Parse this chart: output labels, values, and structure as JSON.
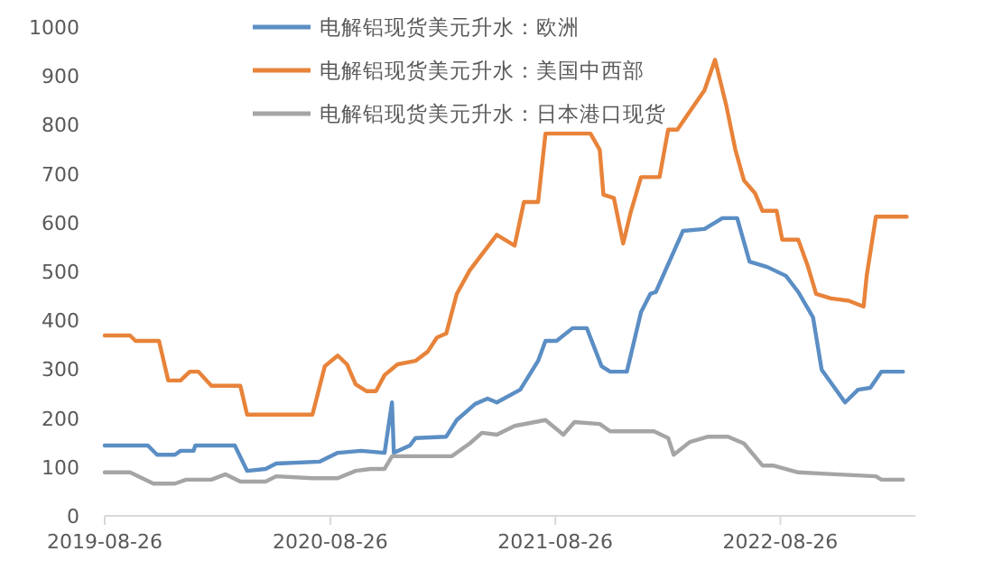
{
  "chart_data": {
    "type": "line",
    "legend": "top",
    "grid": false,
    "marker": "none",
    "line_style": "solid",
    "xlim": [
      "2019-08-26",
      "2023-04-02"
    ],
    "xticks": [
      "2019-08-26",
      "2020-08-26",
      "2021-08-26",
      "2022-08-26"
    ],
    "ylim": [
      0,
      1000
    ],
    "yticks": [
      0,
      100,
      200,
      300,
      400,
      500,
      600,
      700,
      800,
      900,
      1000
    ],
    "series": [
      {
        "name": "电解铝现货美元升水：欧洲",
        "color": "#5b8ec4",
        "x": [
          "2019-08-26",
          "2019-11-04",
          "2019-11-19",
          "2019-12-18",
          "2019-12-27",
          "2020-01-17",
          "2020-01-20",
          "2020-03-24",
          "2020-04-13",
          "2020-05-13",
          "2020-05-30",
          "2020-08-09",
          "2020-09-07",
          "2020-10-15",
          "2020-11-22",
          "2020-12-04",
          "2020-12-07",
          "2021-01-02",
          "2021-01-11",
          "2021-03-02",
          "2021-03-19",
          "2021-04-18",
          "2021-05-08",
          "2021-05-23",
          "2021-06-30",
          "2021-07-29",
          "2021-08-10",
          "2021-08-28",
          "2021-09-23",
          "2021-10-16",
          "2021-11-09",
          "2021-11-23",
          "2021-12-20",
          "2022-01-12",
          "2022-01-27",
          "2022-02-05",
          "2022-03-21",
          "2022-04-25",
          "2022-05-24",
          "2022-06-17",
          "2022-07-07",
          "2022-08-05",
          "2022-09-04",
          "2022-09-24",
          "2022-10-18",
          "2022-11-01",
          "2022-12-09",
          "2022-12-30",
          "2023-01-19",
          "2023-02-06",
          "2023-03-13"
        ],
        "values": [
          144,
          144,
          125,
          125,
          133,
          133,
          144,
          144,
          92,
          96,
          107,
          111,
          129,
          133,
          129,
          232,
          129,
          144,
          159,
          162,
          196,
          229,
          240,
          232,
          258,
          317,
          358,
          358,
          384,
          384,
          306,
          295,
          295,
          417,
          454,
          458,
          583,
          587,
          609,
          609,
          520,
          509,
          491,
          458,
          406,
          299,
          232,
          258,
          262,
          295,
          295
        ]
      },
      {
        "name": "电解铝现货美元升水：美国中西部",
        "color": "#e8833a",
        "x": [
          "2019-08-26",
          "2019-10-06",
          "2019-10-15",
          "2019-11-22",
          "2019-12-07",
          "2019-12-27",
          "2020-01-11",
          "2020-01-25",
          "2020-02-15",
          "2020-02-24",
          "2020-04-02",
          "2020-04-13",
          "2020-07-28",
          "2020-08-17",
          "2020-09-07",
          "2020-09-22",
          "2020-10-06",
          "2020-10-24",
          "2020-11-08",
          "2020-11-22",
          "2020-12-13",
          "2021-01-11",
          "2021-01-31",
          "2021-02-15",
          "2021-03-02",
          "2021-03-19",
          "2021-04-09",
          "2021-05-23",
          "2021-06-21",
          "2021-07-06",
          "2021-07-29",
          "2021-08-10",
          "2021-10-22",
          "2021-11-06",
          "2021-11-12",
          "2021-11-29",
          "2021-12-14",
          "2021-12-26",
          "2022-01-12",
          "2022-02-11",
          "2022-02-25",
          "2022-03-12",
          "2022-04-01",
          "2022-04-25",
          "2022-05-12",
          "2022-05-30",
          "2022-06-14",
          "2022-06-28",
          "2022-07-16",
          "2022-07-28",
          "2022-08-20",
          "2022-08-29",
          "2022-09-24",
          "2022-10-09",
          "2022-10-23",
          "2022-11-16",
          "2022-12-15",
          "2023-01-08",
          "2023-01-13",
          "2023-01-28",
          "2023-03-19"
        ],
        "values": [
          369,
          369,
          358,
          358,
          277,
          277,
          295,
          295,
          266,
          266,
          266,
          207,
          207,
          306,
          328,
          310,
          269,
          255,
          255,
          288,
          310,
          317,
          336,
          365,
          373,
          454,
          502,
          575,
          553,
          642,
          642,
          782,
          782,
          749,
          657,
          650,
          557,
          620,
          693,
          693,
          790,
          790,
          827,
          871,
          933,
          841,
          749,
          686,
          660,
          624,
          624,
          565,
          565,
          513,
          454,
          445,
          440,
          428,
          491,
          612,
          612
        ]
      },
      {
        "name": "电解铝现货美元升水：日本港口现货",
        "color": "#a5a5a5",
        "x": [
          "2019-08-26",
          "2019-10-06",
          "2019-11-13",
          "2019-12-18",
          "2020-01-05",
          "2020-02-15",
          "2020-03-09",
          "2020-04-02",
          "2020-05-13",
          "2020-05-30",
          "2020-07-28",
          "2020-09-07",
          "2020-10-06",
          "2020-10-30",
          "2020-11-22",
          "2020-12-04",
          "2021-03-11",
          "2021-04-09",
          "2021-04-29",
          "2021-05-23",
          "2021-06-21",
          "2021-08-10",
          "2021-09-08",
          "2021-09-26",
          "2021-11-06",
          "2021-11-23",
          "2022-02-02",
          "2022-02-25",
          "2022-03-06",
          "2022-04-01",
          "2022-05-01",
          "2022-06-02",
          "2022-06-28",
          "2022-07-28",
          "2022-08-14",
          "2022-09-24",
          "2022-11-22",
          "2023-01-28",
          "2023-02-06",
          "2023-03-13"
        ],
        "values": [
          89,
          89,
          66,
          66,
          74,
          74,
          85,
          70,
          70,
          81,
          77,
          77,
          92,
          96,
          96,
          122,
          122,
          148,
          170,
          166,
          184,
          196,
          166,
          192,
          188,
          173,
          173,
          159,
          125,
          151,
          162,
          162,
          148,
          103,
          103,
          89,
          85,
          81,
          74,
          74
        ]
      }
    ]
  }
}
